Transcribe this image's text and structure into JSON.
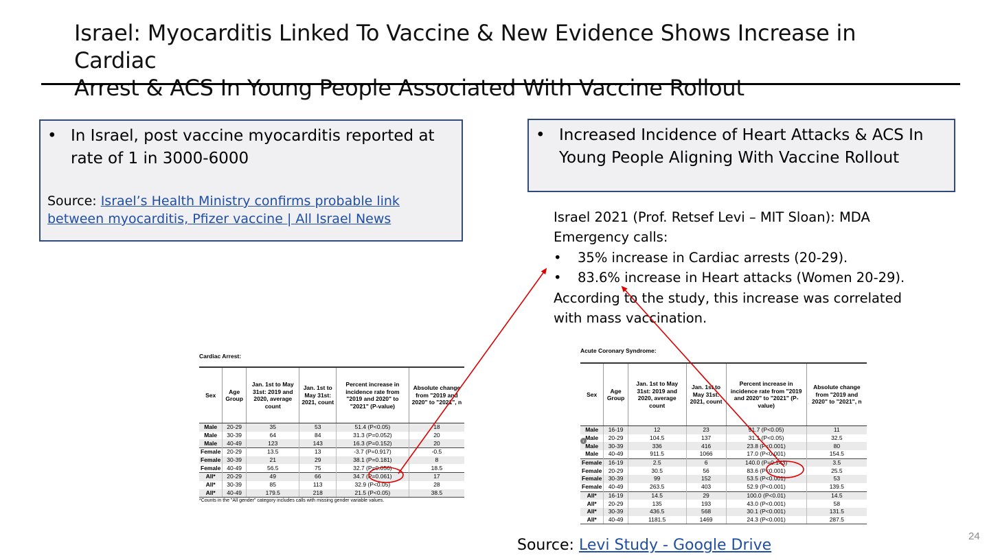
{
  "slide": {
    "title_line1": "Israel: Myocarditis Linked To Vaccine & New Evidence Shows Increase in Cardiac",
    "title_line2": "Arrest & ACS In Young People Associated With Vaccine Rollout",
    "page_number": "24"
  },
  "left_box": {
    "bullet": "•",
    "text": "In Israel, post vaccine myocarditis reported at rate of 1 in 3000-6000",
    "source_label": "Source: ",
    "source_link": "Israel’s Health Ministry confirms probable link between myocarditis, Pfizer vaccine | All Israel News"
  },
  "right_box": {
    "bullet": "•",
    "text": "Increased Incidence of Heart Attacks & ACS In Young People Aligning With Vaccine Rollout"
  },
  "study": {
    "intro": "Israel 2021 (Prof. Retsef Levi – MIT Sloan): MDA Emergency calls:",
    "bullet": "•",
    "items": [
      "35% increase in Cardiac arrests (20-29).",
      "83.6% increase in Heart attacks (Women 20-29)."
    ],
    "conclusion": "According to the study, this increase was correlated with mass vaccination."
  },
  "cardiac_table": {
    "caption": "Cardiac Arrest:",
    "headers": [
      "Sex",
      "Age Group",
      "Jan. 1st to May 31st: 2019 and 2020, average count",
      "Jan. 1st to May 31st: 2021, count",
      "Percent increase in incidence rate from \"2019 and 2020\" to \"2021\" (P-value)",
      "Absolute change from \"2019 and 2020\" to \"2021\", n"
    ],
    "rows": [
      [
        "Male",
        "20-29",
        "35",
        "53",
        "51.4 (P<0.05)",
        "18"
      ],
      [
        "Male",
        "30-39",
        "64",
        "84",
        "31.3 (P=0.052)",
        "20"
      ],
      [
        "Male",
        "40-49",
        "123",
        "143",
        "16.3 (P=0.152)",
        "20"
      ],
      [
        "Female",
        "20-29",
        "13.5",
        "13",
        "-3.7 (P=0.917)",
        "-0.5"
      ],
      [
        "Female",
        "30-39",
        "21",
        "29",
        "38.1 (P=0.181)",
        "8"
      ],
      [
        "Female",
        "40-49",
        "56.5",
        "75",
        "32.7 (P=0.056)",
        "18.5"
      ],
      [
        "All*",
        "20-29",
        "49",
        "66",
        "34.7 (P=0.061)",
        "17"
      ],
      [
        "All*",
        "30-39",
        "85",
        "113",
        "32.9 (P<0.05)",
        "28"
      ],
      [
        "All*",
        "40-49",
        "179.5",
        "218",
        "21.5 (P<0.05)",
        "38.5"
      ]
    ],
    "footnote": "*Counts in the \"All gender\" category includes calls with missing gender variable values."
  },
  "acs_table": {
    "caption": "Acute Coronary Syndrome:",
    "headers": [
      "Sex",
      "Age Group",
      "Jan. 1st to May 31st: 2019 and 2020, average count",
      "Jan. 1st to May 31st: 2021, count",
      "Percent increase in incidence rate from \"2019 and 2020\" to \"2021\" (P-value)",
      "Absolute change from \"2019 and 2020\" to \"2021\", n"
    ],
    "rows": [
      [
        "Male",
        "16-19",
        "12",
        "23",
        "91.7 (P<0.05)",
        "11"
      ],
      [
        "Male",
        "20-29",
        "104.5",
        "137",
        "31.1 (P<0.05)",
        "32.5"
      ],
      [
        "Male",
        "30-39",
        "336",
        "416",
        "23.8 (P<0.001)",
        "80"
      ],
      [
        "Male",
        "40-49",
        "911.5",
        "1066",
        "17.0 (P<0.001)",
        "154.5"
      ],
      [
        "Female",
        "16-19",
        "2.5",
        "6",
        "140.0 (P=0.143)",
        "3.5"
      ],
      [
        "Female",
        "20-29",
        "30.5",
        "56",
        "83.6 (P<0.001)",
        "25.5"
      ],
      [
        "Female",
        "30-39",
        "99",
        "152",
        "53.5 (P<0.001)",
        "53"
      ],
      [
        "Female",
        "40-49",
        "263.5",
        "403",
        "52.9 (P<0.001)",
        "139.5"
      ],
      [
        "All*",
        "16-19",
        "14.5",
        "29",
        "100.0 (P<0.01)",
        "14.5"
      ],
      [
        "All*",
        "20-29",
        "135",
        "193",
        "43.0 (P<0.001)",
        "58"
      ],
      [
        "All*",
        "30-39",
        "436.5",
        "568",
        "30.1 (P<0.001)",
        "131.5"
      ],
      [
        "All*",
        "40-49",
        "1181.5",
        "1469",
        "24.3 (P<0.001)",
        "287.5"
      ]
    ]
  },
  "bottom_source": {
    "label": "Source: ",
    "link": "Levi Study - Google Drive"
  },
  "colors": {
    "accent_link": "#1f4ea5",
    "box_border": "#2f4a7a",
    "annotation_red": "#dd0000"
  }
}
